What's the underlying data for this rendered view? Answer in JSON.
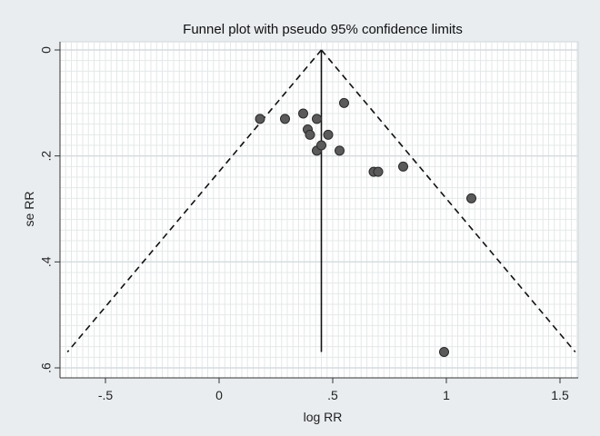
{
  "chart_data": {
    "type": "scatter",
    "title": "Funnel plot with pseudo 95% confidence limits",
    "xlabel": "log RR",
    "ylabel": "se RR",
    "xlim": [
      -0.7,
      1.58
    ],
    "ylim": [
      0,
      0.6
    ],
    "y_reversed": true,
    "x_ticks": [
      {
        "value": -0.5,
        "label": "-.5"
      },
      {
        "value": 0,
        "label": "0"
      },
      {
        "value": 0.5,
        "label": ".5"
      },
      {
        "value": 1,
        "label": "1"
      },
      {
        "value": 1.5,
        "label": "1.5"
      }
    ],
    "y_ticks": [
      {
        "value": 0,
        "label": "0"
      },
      {
        "value": 0.2,
        "label": ".2"
      },
      {
        "value": 0.4,
        "label": ".4"
      },
      {
        "value": 0.6,
        "label": ".6"
      }
    ],
    "grid": true,
    "pooled_estimate": 0.45,
    "pooled_line_se_max": 0.57,
    "confidence_limit_se_max": 0.57,
    "z_value": 1.96,
    "points": [
      {
        "x": 0.18,
        "y": 0.13
      },
      {
        "x": 0.29,
        "y": 0.13
      },
      {
        "x": 0.37,
        "y": 0.12
      },
      {
        "x": 0.39,
        "y": 0.15
      },
      {
        "x": 0.4,
        "y": 0.16
      },
      {
        "x": 0.43,
        "y": 0.13
      },
      {
        "x": 0.43,
        "y": 0.19
      },
      {
        "x": 0.45,
        "y": 0.18
      },
      {
        "x": 0.48,
        "y": 0.16
      },
      {
        "x": 0.53,
        "y": 0.19
      },
      {
        "x": 0.55,
        "y": 0.1
      },
      {
        "x": 0.68,
        "y": 0.23
      },
      {
        "x": 0.7,
        "y": 0.23
      },
      {
        "x": 0.81,
        "y": 0.22
      },
      {
        "x": 1.11,
        "y": 0.28
      },
      {
        "x": 0.99,
        "y": 0.57
      }
    ],
    "colors": {
      "background": "#e9edf0",
      "plot_region": "#ffffff",
      "grid": "#e4e8ea",
      "point_fill": "#5a5a5a",
      "point_stroke": "#2a2a2a",
      "line": "#111111"
    }
  }
}
